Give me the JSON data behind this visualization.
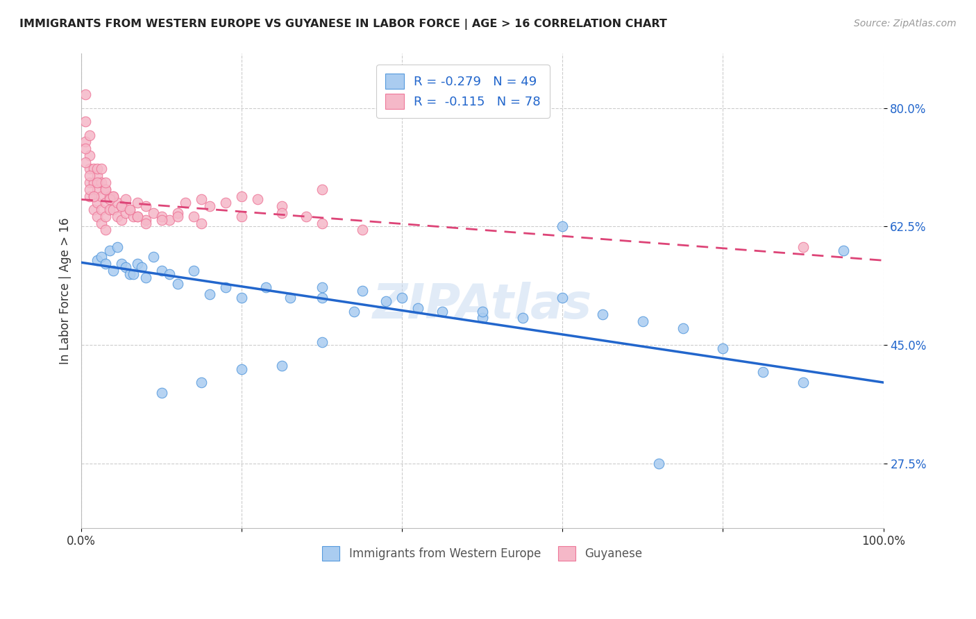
{
  "title": "IMMIGRANTS FROM WESTERN EUROPE VS GUYANESE IN LABOR FORCE | AGE > 16 CORRELATION CHART",
  "source": "Source: ZipAtlas.com",
  "ylabel": "In Labor Force | Age > 16",
  "xlim": [
    0.0,
    1.0
  ],
  "ylim": [
    0.18,
    0.88
  ],
  "yticks": [
    0.275,
    0.45,
    0.625,
    0.8
  ],
  "ytick_labels": [
    "27.5%",
    "45.0%",
    "62.5%",
    "80.0%"
  ],
  "xticks": [
    0.0,
    0.2,
    0.4,
    0.6,
    0.8,
    1.0
  ],
  "xtick_labels": [
    "0.0%",
    "",
    "",
    "",
    "",
    "100.0%"
  ],
  "blue_R": -0.279,
  "blue_N": 49,
  "pink_R": -0.115,
  "pink_N": 78,
  "blue_color": "#aaccf0",
  "pink_color": "#f5b8c8",
  "blue_edge_color": "#5599dd",
  "pink_edge_color": "#ee7799",
  "blue_line_color": "#2266cc",
  "pink_line_color": "#dd4477",
  "legend_label_blue": "Immigrants from Western Europe",
  "legend_label_pink": "Guyanese",
  "watermark": "ZIPAtlas",
  "blue_line_x0": 0.0,
  "blue_line_y0": 0.572,
  "blue_line_x1": 1.0,
  "blue_line_y1": 0.395,
  "pink_line_x0": 0.0,
  "pink_line_y0": 0.665,
  "pink_line_x1": 1.0,
  "pink_line_y1": 0.575,
  "blue_scatter_x": [
    0.02,
    0.025,
    0.03,
    0.035,
    0.04,
    0.045,
    0.05,
    0.055,
    0.06,
    0.065,
    0.07,
    0.075,
    0.08,
    0.09,
    0.1,
    0.11,
    0.12,
    0.14,
    0.16,
    0.18,
    0.2,
    0.23,
    0.26,
    0.3,
    0.34,
    0.38,
    0.42,
    0.3,
    0.35,
    0.4,
    0.45,
    0.5,
    0.55,
    0.6,
    0.65,
    0.7,
    0.75,
    0.8,
    0.85,
    0.9,
    0.95,
    0.5,
    0.6,
    0.72,
    0.3,
    0.25,
    0.2,
    0.15,
    0.1
  ],
  "blue_scatter_y": [
    0.575,
    0.58,
    0.57,
    0.59,
    0.56,
    0.595,
    0.57,
    0.565,
    0.555,
    0.555,
    0.57,
    0.565,
    0.55,
    0.58,
    0.56,
    0.555,
    0.54,
    0.56,
    0.525,
    0.535,
    0.52,
    0.535,
    0.52,
    0.52,
    0.5,
    0.515,
    0.505,
    0.535,
    0.53,
    0.52,
    0.5,
    0.49,
    0.49,
    0.52,
    0.495,
    0.485,
    0.475,
    0.445,
    0.41,
    0.395,
    0.59,
    0.5,
    0.625,
    0.275,
    0.455,
    0.42,
    0.415,
    0.395,
    0.38
  ],
  "pink_scatter_x": [
    0.005,
    0.005,
    0.005,
    0.01,
    0.01,
    0.01,
    0.01,
    0.01,
    0.015,
    0.015,
    0.015,
    0.015,
    0.02,
    0.02,
    0.02,
    0.02,
    0.025,
    0.025,
    0.025,
    0.025,
    0.03,
    0.03,
    0.03,
    0.03,
    0.035,
    0.035,
    0.04,
    0.04,
    0.045,
    0.045,
    0.05,
    0.05,
    0.055,
    0.055,
    0.06,
    0.065,
    0.07,
    0.07,
    0.08,
    0.08,
    0.09,
    0.1,
    0.11,
    0.12,
    0.13,
    0.14,
    0.15,
    0.16,
    0.18,
    0.2,
    0.22,
    0.25,
    0.28,
    0.3,
    0.005,
    0.005,
    0.01,
    0.01,
    0.015,
    0.02,
    0.02,
    0.025,
    0.03,
    0.03,
    0.035,
    0.04,
    0.05,
    0.06,
    0.07,
    0.08,
    0.1,
    0.12,
    0.15,
    0.2,
    0.25,
    0.3,
    0.35,
    0.9
  ],
  "pink_scatter_y": [
    0.82,
    0.78,
    0.75,
    0.76,
    0.73,
    0.71,
    0.69,
    0.67,
    0.71,
    0.69,
    0.67,
    0.65,
    0.7,
    0.68,
    0.66,
    0.64,
    0.69,
    0.67,
    0.65,
    0.63,
    0.68,
    0.66,
    0.64,
    0.62,
    0.67,
    0.65,
    0.67,
    0.65,
    0.66,
    0.64,
    0.655,
    0.635,
    0.665,
    0.645,
    0.65,
    0.64,
    0.66,
    0.64,
    0.655,
    0.635,
    0.645,
    0.64,
    0.635,
    0.645,
    0.66,
    0.64,
    0.665,
    0.655,
    0.66,
    0.67,
    0.665,
    0.655,
    0.64,
    0.68,
    0.72,
    0.74,
    0.68,
    0.7,
    0.67,
    0.71,
    0.69,
    0.71,
    0.68,
    0.69,
    0.665,
    0.67,
    0.655,
    0.65,
    0.64,
    0.63,
    0.635,
    0.64,
    0.63,
    0.64,
    0.645,
    0.63,
    0.62,
    0.595
  ]
}
